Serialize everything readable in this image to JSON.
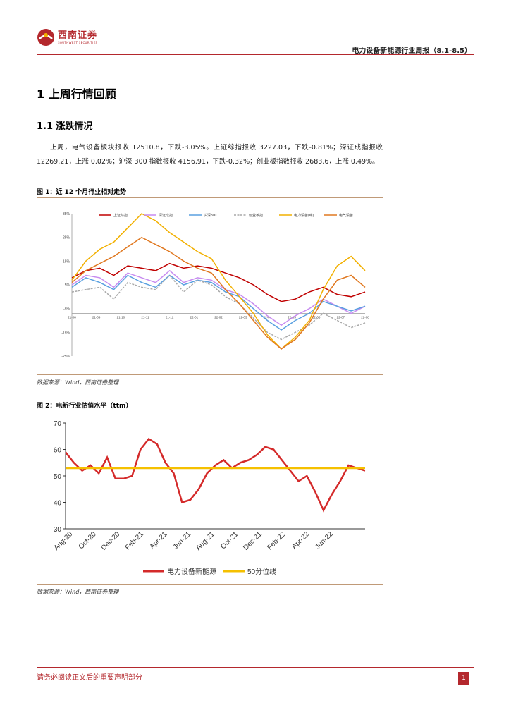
{
  "header": {
    "logo_cn": "西南证券",
    "logo_en": "SOUTHWEST SECURITIES",
    "title": "电力设备新能源行业周报（8.1-8.5）",
    "colors": {
      "brand": "#b4282d"
    }
  },
  "section": {
    "h1": "1 上周行情回顾",
    "h2": "1.1 涨跌情况",
    "paragraph": "上周，电气设备板块报收 12510.8，下跌-3.05%。上证综指报收 3227.03，下跌-0.81%；深证成指报收 12269.21，上涨 0.02%；沪深 300 指数报收 4156.91，下跌-0.32%；创业板指数报收 2683.6，上涨 0.49%。"
  },
  "figure1": {
    "caption": "图 1：近 12 个月行业相对走势",
    "source": "数据来源：Wind，西南证券整理"
  },
  "figure2": {
    "caption": "图 2：电新行业估值水平（ttm）",
    "source": "数据来源：Wind，西南证券整理"
  },
  "footer": {
    "disclaimer": "请务必阅读正文后的重要声明部分",
    "page": "1"
  },
  "chart_data": [
    {
      "type": "line",
      "title": "",
      "ylim": [
        -30,
        30
      ],
      "y_tick_labels": [
        "35%",
        "25%",
        "15%",
        "5%",
        "-5%",
        "-15%",
        "-25%"
      ],
      "x_tick_labels": [
        "21-08",
        "21-09",
        "21-10",
        "21-11",
        "21-12",
        "22-01",
        "22-02",
        "22-03",
        "22-04",
        "22-05",
        "22-06",
        "22-07",
        "22-08"
      ],
      "legend": [
        "上证综指",
        "深证成指",
        "沪深300",
        "创业板指",
        "电力设备(申)",
        "电气设备"
      ],
      "legend_placement": "top",
      "grid": false,
      "series": [
        {
          "name": "上证综指",
          "color": "#c00000",
          "values": [
            3,
            6,
            7,
            4,
            8,
            7,
            6,
            9,
            7,
            8,
            7,
            5,
            3,
            0,
            -4,
            -7,
            -6,
            -3,
            -1,
            -4,
            -5,
            -3
          ]
        },
        {
          "name": "深证成指",
          "color": "#c78bf0",
          "values": [
            0,
            4,
            3,
            -1,
            5,
            3,
            1,
            6,
            1,
            3,
            2,
            -2,
            -4,
            -8,
            -13,
            -17,
            -13,
            -10,
            -6,
            -9,
            -12,
            -9
          ]
        },
        {
          "name": "沪深300",
          "color": "#5aa0e0",
          "values": [
            -1,
            3,
            1,
            -2,
            4,
            1,
            -1,
            4,
            0,
            2,
            1,
            -3,
            -5,
            -10,
            -15,
            -19,
            -15,
            -12,
            -7,
            -9,
            -11,
            -9
          ]
        },
        {
          "name": "创业板指",
          "color": "#a8a8a8",
          "values": [
            -3,
            -2,
            -1,
            -6,
            1,
            -1,
            -2,
            4,
            -3,
            2,
            0,
            -5,
            -8,
            -14,
            -20,
            -23,
            -20,
            -17,
            -12,
            -15,
            -18,
            -16
          ]
        },
        {
          "name": "电力设备(申)",
          "color": "#f2b000",
          "values": [
            2,
            10,
            15,
            18,
            24,
            30,
            27,
            22,
            18,
            14,
            11,
            2,
            -5,
            -12,
            -21,
            -27,
            -22,
            -15,
            -2,
            8,
            12,
            6
          ]
        },
        {
          "name": "电气设备",
          "color": "#e07820",
          "values": [
            1,
            6,
            9,
            12,
            16,
            20,
            17,
            14,
            10,
            7,
            5,
            -2,
            -8,
            -15,
            -22,
            -27,
            -23,
            -16,
            -6,
            2,
            4,
            -1
          ]
        }
      ]
    },
    {
      "type": "line",
      "title": "",
      "ylim": [
        30,
        70
      ],
      "y_ticks": [
        30,
        40,
        50,
        60,
        70
      ],
      "x_tick_labels": [
        "Aug-20",
        "Oct-20",
        "Dec-20",
        "Feb-21",
        "Apr-21",
        "Jun-21",
        "Aug-21",
        "Oct-21",
        "Dec-21",
        "Feb-22",
        "Apr-22",
        "Jun-22"
      ],
      "legend": [
        "电力设备新能源",
        "50分位线"
      ],
      "legend_placement": "bottom",
      "grid": false,
      "series": [
        {
          "name": "电力设备新能源",
          "color": "#d42a2a",
          "values": [
            59,
            55,
            52,
            54,
            51,
            57,
            49,
            49,
            50,
            60,
            64,
            62,
            55,
            51,
            40,
            41,
            45,
            51,
            54,
            56,
            53,
            55,
            56,
            58,
            61,
            60,
            56,
            52,
            48,
            50,
            44,
            37,
            43,
            48,
            54,
            53,
            52
          ]
        },
        {
          "name": "50分位线",
          "color": "#f5c000",
          "values": [
            53,
            53
          ]
        }
      ]
    }
  ]
}
